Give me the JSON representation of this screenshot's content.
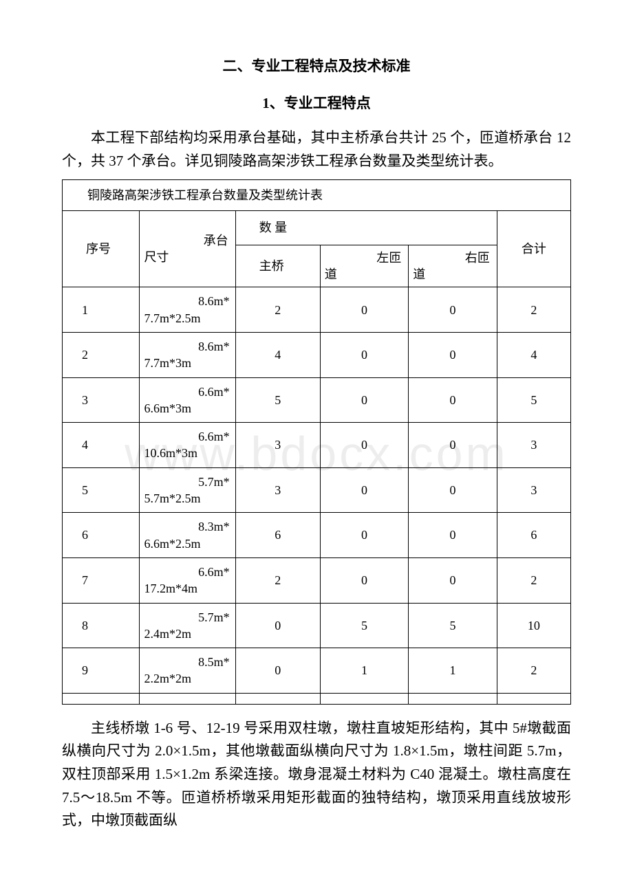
{
  "watermark": "www.bdocx.com",
  "heading2": "二、专业工程特点及技术标准",
  "heading3": "1、专业工程特点",
  "intro_para": "本工程下部结构均采用承台基础，其中主桥承台共计 25 个，匝道桥承台 12 个，共 37 个承台。详见铜陵路高架涉铁工程承台数量及类型统计表。",
  "table": {
    "title": "铜陵路高架涉铁工程承台数量及类型统计表",
    "header": {
      "seq": "序号",
      "size_l1": "承台",
      "size_l2": "尺寸",
      "qty": "数 量",
      "total": "合计",
      "main": "主桥",
      "left_l1": "左匝",
      "left_l2": "道",
      "right_l1": "右匝",
      "right_l2": "道"
    },
    "rows": [
      {
        "seq": "1",
        "size_l1": "8.6m*",
        "size_l2": "7.7m*2.5m",
        "main": "2",
        "left": "0",
        "right": "0",
        "total": "2"
      },
      {
        "seq": "2",
        "size_l1": "8.6m*",
        "size_l2": "7.7m*3m",
        "main": "4",
        "left": "0",
        "right": "0",
        "total": "4"
      },
      {
        "seq": "3",
        "size_l1": "6.6m*",
        "size_l2": "6.6m*3m",
        "main": "5",
        "left": "0",
        "right": "0",
        "total": "5"
      },
      {
        "seq": "4",
        "size_l1": "6.6m*",
        "size_l2": "10.6m*3m",
        "main": "3",
        "left": "0",
        "right": "0",
        "total": "3"
      },
      {
        "seq": "5",
        "size_l1": "5.7m*",
        "size_l2": "5.7m*2.5m",
        "main": "3",
        "left": "0",
        "right": "0",
        "total": "3"
      },
      {
        "seq": "6",
        "size_l1": "8.3m*",
        "size_l2": "6.6m*2.5m",
        "main": "6",
        "left": "0",
        "right": "0",
        "total": "6"
      },
      {
        "seq": "7",
        "size_l1": "6.6m*",
        "size_l2": "17.2m*4m",
        "main": "2",
        "left": "0",
        "right": "0",
        "total": "2"
      },
      {
        "seq": "8",
        "size_l1": "5.7m*",
        "size_l2": "2.4m*2m",
        "main": "0",
        "left": "5",
        "right": "5",
        "total": "10"
      },
      {
        "seq": "9",
        "size_l1": "8.5m*",
        "size_l2": "2.2m*2m",
        "main": "0",
        "left": "1",
        "right": "1",
        "total": "2"
      }
    ]
  },
  "trailing_para": "主线桥墩 1-6 号、12-19 号采用双柱墩，墩柱直坡矩形结构，其中 5#墩截面纵横向尺寸为 2.0×1.5m，其他墩截面纵横向尺寸为 1.8×1.5m，墩柱间距 5.7m，双柱顶部采用 1.5×1.2m 系梁连接。墩身混凝土材料为 C40 混凝土。墩柱高度在 7.5～18.5m 不等。匝道桥桥墩采用矩形截面的独特结构，墩顶采用直线放坡形式，中墩顶截面纵"
}
